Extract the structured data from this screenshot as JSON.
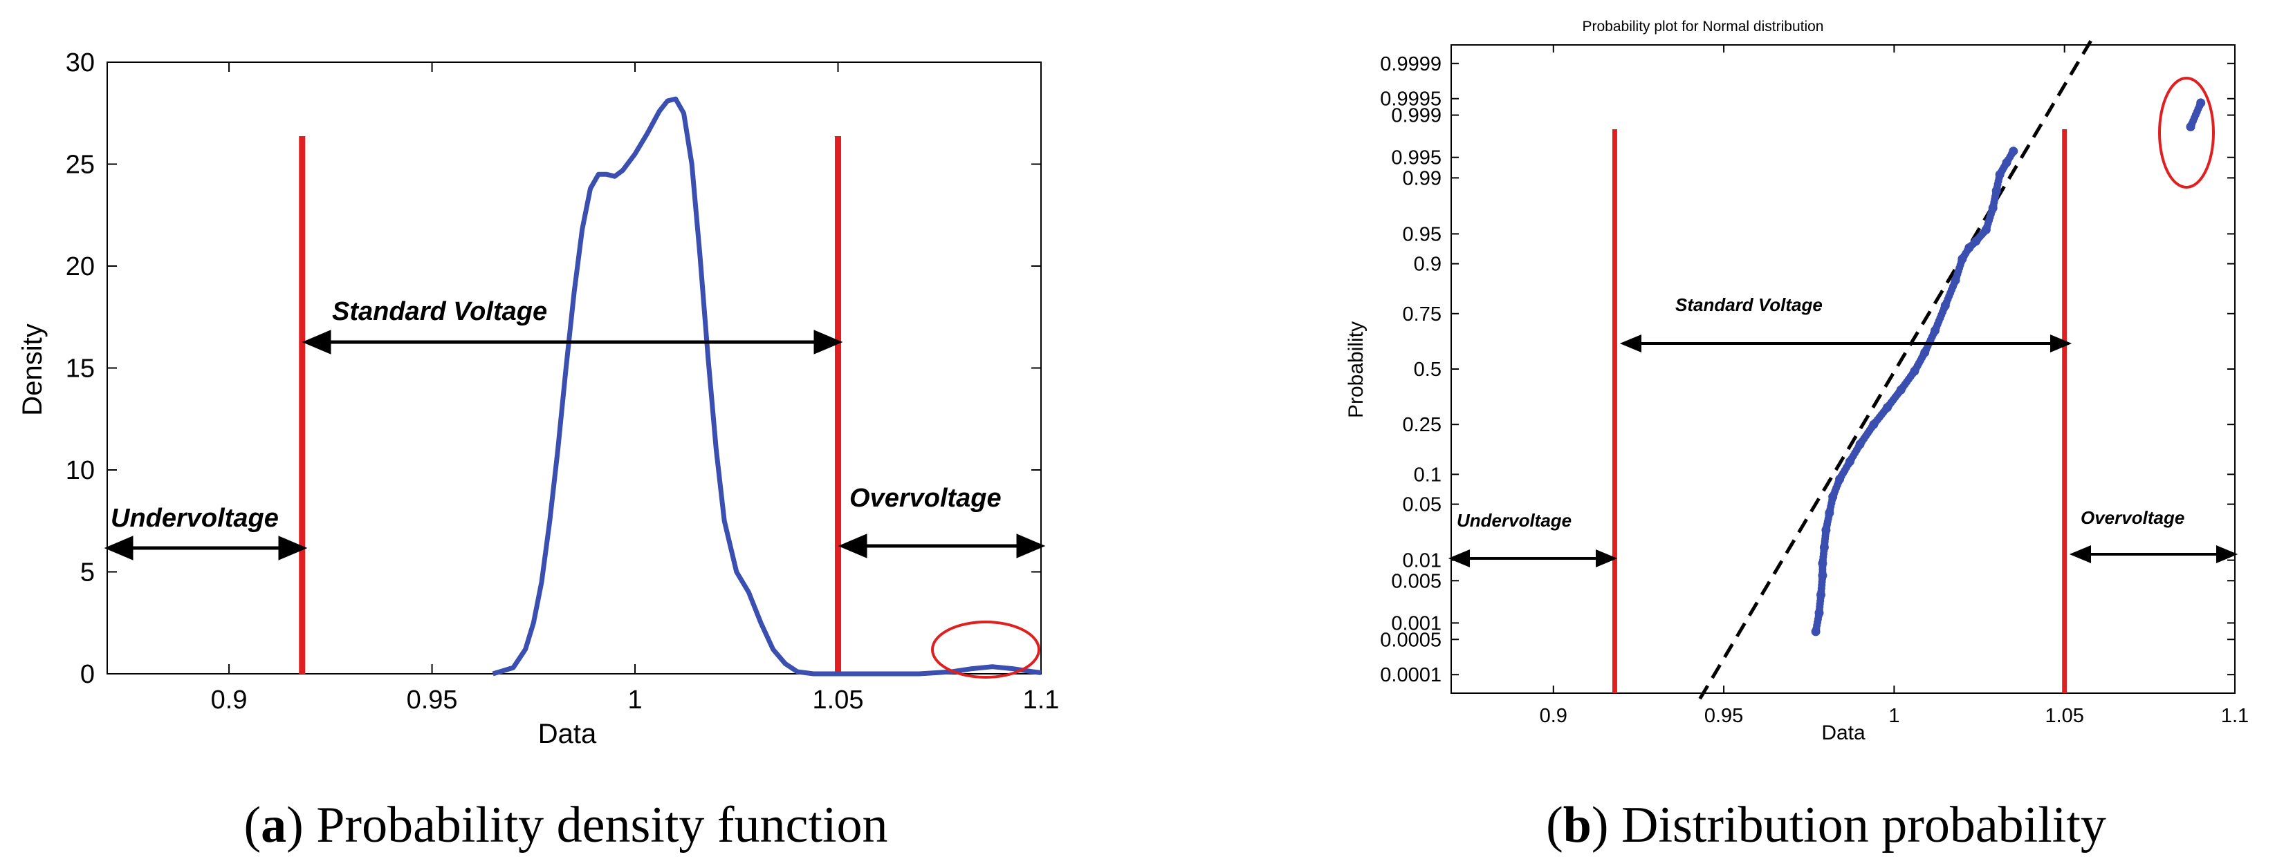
{
  "chart_data": [
    {
      "type": "line",
      "panel": "a",
      "title": "",
      "caption_letter": "a",
      "caption_text": ") Probability density function",
      "caption_open": "(",
      "xlabel": "Data",
      "ylabel": "Density",
      "xlim": [
        0.87,
        1.1
      ],
      "ylim": [
        0,
        30
      ],
      "xticks": [
        "0.9",
        "0.95",
        "1",
        "1.05",
        "1.1"
      ],
      "xtick_values": [
        0.9,
        0.95,
        1.0,
        1.05,
        1.1
      ],
      "yticks": [
        "0",
        "5",
        "10",
        "15",
        "20",
        "25",
        "30"
      ],
      "ytick_values": [
        0,
        5,
        10,
        15,
        20,
        25,
        30
      ],
      "limits": [
        0.918,
        1.05
      ],
      "limit_color": "#e02020",
      "series_color": "#3a4fb0",
      "highlight_color": "#e02020",
      "regions": {
        "under": "Undervoltage",
        "standard": "Standard Voltage",
        "over": "Overvoltage"
      },
      "series": [
        {
          "name": "density",
          "x": [
            0.965,
            0.97,
            0.973,
            0.975,
            0.977,
            0.979,
            0.981,
            0.983,
            0.985,
            0.987,
            0.989,
            0.991,
            0.993,
            0.995,
            0.997,
            1.0,
            1.003,
            1.006,
            1.008,
            1.01,
            1.012,
            1.014,
            1.016,
            1.018,
            1.02,
            1.022,
            1.025,
            1.028,
            1.031,
            1.034,
            1.037,
            1.04,
            1.044,
            1.05,
            1.06,
            1.07,
            1.078,
            1.083,
            1.088,
            1.093,
            1.098,
            1.1
          ],
          "y": [
            0.0,
            0.3,
            1.2,
            2.5,
            4.5,
            7.5,
            11.0,
            15.0,
            18.7,
            21.8,
            23.8,
            24.5,
            24.5,
            24.4,
            24.7,
            25.5,
            26.5,
            27.6,
            28.1,
            28.2,
            27.5,
            25.0,
            20.5,
            15.5,
            11.0,
            7.5,
            5.0,
            4.0,
            2.5,
            1.2,
            0.5,
            0.1,
            0.0,
            0.0,
            0.0,
            0.0,
            0.1,
            0.25,
            0.35,
            0.25,
            0.1,
            0.05
          ]
        }
      ]
    },
    {
      "type": "scatter",
      "panel": "b",
      "title": "Probability plot for Normal distribution",
      "caption_letter": "b",
      "caption_text": ") Distribution probability",
      "caption_open": "(",
      "xlabel": "Data",
      "ylabel": "Probability",
      "xlim": [
        0.87,
        1.1
      ],
      "xticks": [
        "0.9",
        "0.95",
        "1",
        "1.05",
        "1.1"
      ],
      "xtick_values": [
        0.9,
        0.95,
        1.0,
        1.05,
        1.1
      ],
      "yticks": [
        "0.0001",
        "0.0005",
        "0.001",
        "0.005",
        "0.01",
        "0.05",
        "0.1",
        "0.25",
        "0.5",
        "0.75",
        "0.9",
        "0.95",
        "0.99",
        "0.995",
        "0.999",
        "0.9995",
        "0.9999"
      ],
      "ytick_values": [
        0.0001,
        0.0005,
        0.001,
        0.005,
        0.01,
        0.05,
        0.1,
        0.25,
        0.5,
        0.75,
        0.9,
        0.95,
        0.99,
        0.995,
        0.999,
        0.9995,
        0.9999
      ],
      "ylim_probability": [
        4e-05,
        0.99996
      ],
      "limits": [
        0.918,
        1.05
      ],
      "limit_color": "#e02020",
      "series_color": "#3a4fb0",
      "highlight_color": "#e02020",
      "reference_line": {
        "x": [
          0.943,
          1.058
        ],
        "p": [
          3e-05,
          0.99997
        ]
      },
      "regions": {
        "under": "Undervoltage",
        "standard": "Standard Voltage",
        "over": "Overvoltage"
      },
      "series": [
        {
          "name": "samples",
          "x": [
            0.977,
            0.978,
            0.9785,
            0.979,
            0.979,
            0.9795,
            0.98,
            0.981,
            0.982,
            0.984,
            0.987,
            0.99,
            0.994,
            0.998,
            1.002,
            1.006,
            1.009,
            1.012,
            1.015,
            1.018,
            1.02,
            1.022,
            1.024,
            1.027,
            1.029,
            1.03,
            1.031,
            1.033,
            1.035,
            1.087,
            1.09
          ],
          "p": [
            0.0007,
            0.0015,
            0.003,
            0.006,
            0.009,
            0.015,
            0.025,
            0.04,
            0.06,
            0.09,
            0.13,
            0.18,
            0.25,
            0.32,
            0.4,
            0.49,
            0.58,
            0.68,
            0.78,
            0.86,
            0.91,
            0.93,
            0.94,
            0.955,
            0.975,
            0.985,
            0.991,
            0.994,
            0.996,
            0.9984,
            0.9994
          ]
        }
      ]
    }
  ]
}
